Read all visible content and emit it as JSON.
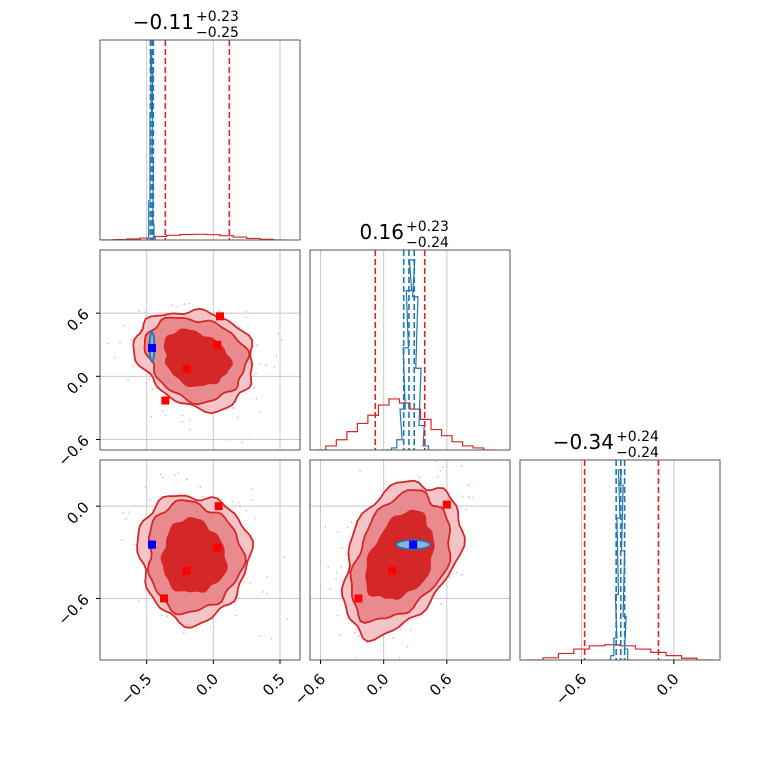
{
  "chart_data": {
    "type": "corner",
    "colors": {
      "broad": "#d62728",
      "narrow": "#1f77b4",
      "marker_red": "#ff0000",
      "marker_blue": "#0000ff",
      "grid": "#c8c8c8",
      "scatter": "#f4a6b4"
    },
    "grid": true,
    "parameters": [
      {
        "title": {
          "median": "−0.11",
          "plus": "+0.23",
          "minus": "−0.25"
        },
        "range": [
          -0.85,
          0.65
        ],
        "ticks": [
          {
            "v": -0.5,
            "label": "−0.5"
          },
          {
            "v": 0.0,
            "label": "0.0"
          },
          {
            "v": 0.5,
            "label": "0.5"
          }
        ]
      },
      {
        "title": {
          "median": "0.16",
          "plus": "+0.23",
          "minus": "−0.24"
        },
        "range": [
          -0.7,
          1.2
        ],
        "ticks": [
          {
            "v": -0.6,
            "label": "−0.6"
          },
          {
            "v": 0.0,
            "label": "0.0"
          },
          {
            "v": 0.6,
            "label": "0.6"
          }
        ]
      },
      {
        "title": {
          "median": "−0.34",
          "plus": "+0.24",
          "minus": "−0.24"
        },
        "range": [
          -1.0,
          0.3
        ],
        "ticks": [
          {
            "v": -0.6,
            "label": "−0.6"
          },
          {
            "v": 0.0,
            "label": "0.0"
          }
        ]
      }
    ],
    "diagonal": [
      {
        "broad": {
          "x": [
            -0.8,
            -0.7,
            -0.6,
            -0.5,
            -0.4,
            -0.3,
            -0.2,
            -0.1,
            0.0,
            0.1,
            0.2,
            0.3,
            0.4,
            0.5
          ],
          "y": [
            0.0,
            0.002,
            0.005,
            0.01,
            0.018,
            0.024,
            0.028,
            0.029,
            0.027,
            0.022,
            0.015,
            0.008,
            0.003,
            0.0
          ]
        },
        "narrow": {
          "x": [
            -0.5,
            -0.49,
            -0.48,
            -0.47,
            -0.465,
            -0.46,
            -0.455,
            -0.45,
            -0.44,
            -0.43
          ],
          "y": [
            0.0,
            0.01,
            0.2,
            0.65,
            0.97,
            0.85,
            0.4,
            0.08,
            0.01,
            0.0
          ]
        },
        "broad_quantiles": [
          -0.36,
          0.12
        ],
        "narrow_quantiles": [
          -0.472,
          -0.46,
          -0.45
        ]
      },
      {
        "broad": {
          "x": [
            -0.6,
            -0.5,
            -0.4,
            -0.3,
            -0.2,
            -0.1,
            0.0,
            0.1,
            0.2,
            0.3,
            0.4,
            0.5,
            0.6,
            0.7,
            0.8,
            0.9,
            1.0
          ],
          "y": [
            0.0,
            0.02,
            0.05,
            0.09,
            0.13,
            0.17,
            0.22,
            0.25,
            0.23,
            0.2,
            0.15,
            0.1,
            0.07,
            0.04,
            0.02,
            0.01,
            0.0
          ]
        },
        "narrow": {
          "x": [
            0.05,
            0.1,
            0.15,
            0.18,
            0.21,
            0.24,
            0.27,
            0.3,
            0.33,
            0.36,
            0.4,
            0.45
          ],
          "y": [
            0.0,
            0.01,
            0.05,
            0.2,
            0.5,
            0.78,
            0.93,
            0.75,
            0.4,
            0.12,
            0.02,
            0.0
          ]
        },
        "broad_quantiles": [
          -0.08,
          0.39
        ],
        "narrow_quantiles": [
          0.19,
          0.24,
          0.29
        ]
      },
      {
        "broad": {
          "x": [
            -0.9,
            -0.8,
            -0.7,
            -0.6,
            -0.5,
            -0.4,
            -0.3,
            -0.2,
            -0.1,
            0.0,
            0.1,
            0.2
          ],
          "y": [
            0.0,
            0.01,
            0.03,
            0.05,
            0.065,
            0.07,
            0.065,
            0.05,
            0.035,
            0.02,
            0.008,
            0.0
          ]
        },
        "narrow": {
          "x": [
            -0.42,
            -0.4,
            -0.38,
            -0.37,
            -0.36,
            -0.35,
            -0.34,
            -0.33,
            -0.32,
            -0.31,
            -0.29
          ],
          "y": [
            0.0,
            0.02,
            0.1,
            0.3,
            0.65,
            0.87,
            0.8,
            0.5,
            0.2,
            0.05,
            0.0
          ]
        },
        "broad_quantiles": [
          -0.58,
          -0.1
        ],
        "narrow_quantiles": [
          -0.375,
          -0.345,
          -0.32
        ]
      }
    ],
    "panels": [
      {
        "xi": 0,
        "yi": 1,
        "center": [
          -0.13,
          0.17
        ],
        "contours": [
          {
            "sx": 0.41,
            "sy": 0.5,
            "fill": 0.2
          },
          {
            "sx": 0.35,
            "sy": 0.42,
            "fill": 0.45
          },
          {
            "sx": 0.22,
            "sy": 0.28,
            "fill": 1.0
          }
        ],
        "red_markers": [
          [
            -0.36,
            -0.23
          ],
          [
            -0.2,
            0.07
          ],
          [
            0.03,
            0.3
          ],
          [
            0.05,
            0.57
          ]
        ],
        "blue_marker": [
          -0.46,
          0.27
        ],
        "blue_contour": {
          "cx": -0.46,
          "cy": 0.28,
          "rx": 0.018,
          "ry": 0.14
        }
      },
      {
        "xi": 0,
        "yi": 2,
        "center": [
          -0.15,
          -0.33
        ],
        "contours": [
          {
            "sx": 0.41,
            "sy": 0.42,
            "fill": 0.2
          },
          {
            "sx": 0.35,
            "sy": 0.36,
            "fill": 0.45
          },
          {
            "sx": 0.23,
            "sy": 0.24,
            "fill": 1.0
          }
        ],
        "red_markers": [
          [
            -0.37,
            -0.6
          ],
          [
            -0.2,
            -0.42
          ],
          [
            0.03,
            -0.27
          ],
          [
            0.04,
            0.0
          ]
        ],
        "blue_marker": [
          -0.46,
          -0.25
        ],
        "blue_contour": {
          "cx": -0.46,
          "cy": -0.25,
          "rx": 0.012,
          "ry": 0.025
        }
      },
      {
        "xi": 1,
        "yi": 2,
        "center": [
          0.16,
          -0.33
        ],
        "contours": [
          {
            "sx": 0.62,
            "sy": 0.42,
            "fill": 0.2
          },
          {
            "sx": 0.52,
            "sy": 0.35,
            "fill": 0.45
          },
          {
            "sx": 0.35,
            "sy": 0.24,
            "fill": 1.0
          }
        ],
        "red_markers": [
          [
            -0.24,
            -0.6
          ],
          [
            0.08,
            -0.42
          ],
          [
            0.28,
            -0.25
          ],
          [
            0.6,
            0.01
          ]
        ],
        "blue_marker": [
          0.28,
          -0.25
        ],
        "blue_contour": {
          "cx": 0.28,
          "cy": -0.25,
          "rx": 0.16,
          "ry": 0.03
        }
      }
    ]
  }
}
